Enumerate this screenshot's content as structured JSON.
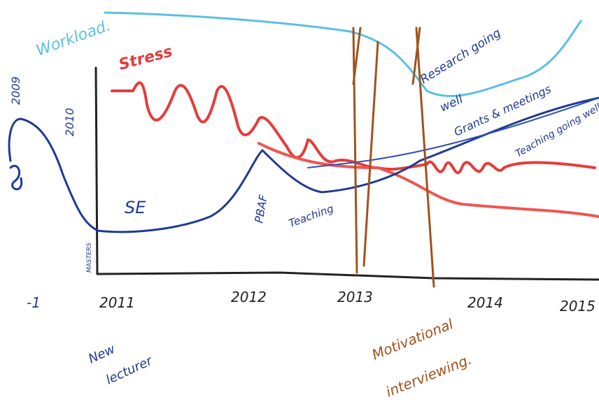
{
  "labels": {
    "workload": "Workload.",
    "stress": "Stress",
    "year_2009": "2009",
    "year_2010": "2010",
    "se": "SE",
    "pbaf": "PBAF",
    "teaching": "Teaching",
    "research_1": "Research going",
    "research_2": "well",
    "grants": "Grants & meetings",
    "teaching_well": "Teaching going well to",
    "masters": "MASTERS",
    "new_lecturer_1": "New",
    "new_lecturer_2": "lecturer",
    "motivational_1": "Motivational",
    "motivational_2": "interviewing."
  },
  "axis": {
    "minus_one": "-1",
    "y2011": "2011",
    "y2012": "2012",
    "y2013": "2013",
    "y2014": "2014",
    "y2015": "2015"
  }
}
